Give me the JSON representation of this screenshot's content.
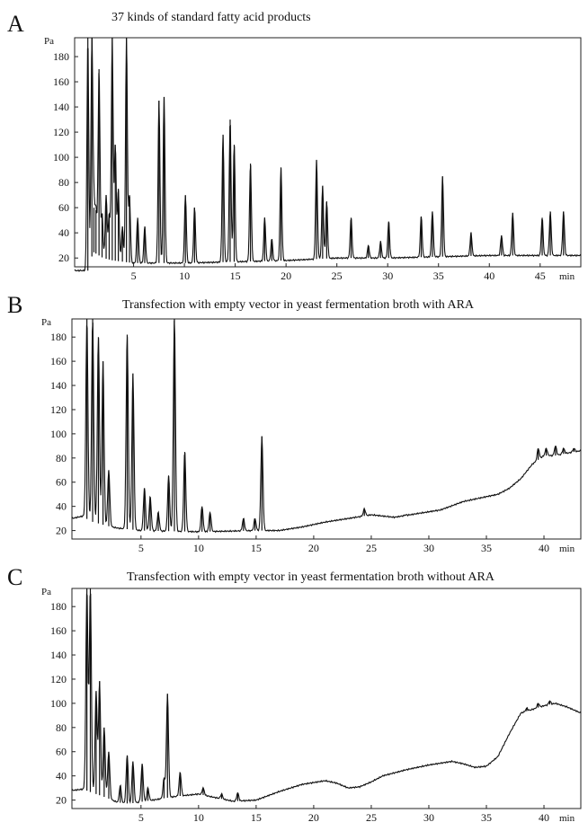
{
  "panels": [
    {
      "letter": "A",
      "title": "37 kinds of standard fatty acid products"
    },
    {
      "letter": "B",
      "title": "Transfection with empty vector in yeast fermentation broth with ARA"
    },
    {
      "letter": "C",
      "title": "Transfection with empty vector in yeast fermentation broth without ARA"
    }
  ],
  "chart_data": [
    {
      "type": "line",
      "title": "37 kinds of standard fatty acid products",
      "ylabel": "Pa",
      "xlabel": "min",
      "xlim": [
        -0.8,
        49
      ],
      "ylim": [
        13,
        195
      ],
      "x_ticks": [
        5,
        10,
        15,
        20,
        25,
        30,
        35,
        40,
        45
      ],
      "y_ticks": [
        20,
        40,
        60,
        80,
        100,
        120,
        140,
        160,
        180
      ],
      "x_tick_labels": [
        "5",
        "10",
        "15",
        "20",
        "25",
        "30",
        "35",
        "40",
        "45",
        "min"
      ],
      "y_tick_labels": [
        "180",
        "160",
        "140",
        "120",
        "100",
        "80",
        "60",
        "40",
        "20"
      ],
      "baseline": [
        [
          -0.8,
          10
        ],
        [
          0.6,
          10
        ],
        [
          1.0,
          25
        ],
        [
          2,
          20
        ],
        [
          3,
          18
        ],
        [
          5,
          16
        ],
        [
          10,
          16
        ],
        [
          15,
          17
        ],
        [
          20,
          18
        ],
        [
          25,
          20
        ],
        [
          30,
          20
        ],
        [
          35,
          21
        ],
        [
          40,
          22
        ],
        [
          45,
          22
        ],
        [
          49,
          22
        ]
      ],
      "peaks": [
        [
          0.5,
          195
        ],
        [
          0.9,
          195
        ],
        [
          1.1,
          60
        ],
        [
          1.3,
          58
        ],
        [
          1.6,
          170
        ],
        [
          1.9,
          55
        ],
        [
          2.3,
          70
        ],
        [
          2.6,
          55
        ],
        [
          2.9,
          195
        ],
        [
          3.2,
          110
        ],
        [
          3.5,
          75
        ],
        [
          3.9,
          45
        ],
        [
          4.3,
          195
        ],
        [
          4.6,
          70
        ],
        [
          5.4,
          52
        ],
        [
          6.1,
          45
        ],
        [
          7.5,
          145
        ],
        [
          8.0,
          148
        ],
        [
          10.1,
          70
        ],
        [
          11.0,
          60
        ],
        [
          13.8,
          118
        ],
        [
          14.5,
          130
        ],
        [
          14.9,
          110
        ],
        [
          16.5,
          95
        ],
        [
          17.9,
          52
        ],
        [
          18.6,
          35
        ],
        [
          19.5,
          92
        ],
        [
          23.0,
          98
        ],
        [
          23.6,
          77
        ],
        [
          24.0,
          65
        ],
        [
          26.4,
          52
        ],
        [
          28.1,
          30
        ],
        [
          29.3,
          33
        ],
        [
          30.1,
          49
        ],
        [
          33.3,
          53
        ],
        [
          34.4,
          57
        ],
        [
          35.4,
          85
        ],
        [
          38.2,
          40
        ],
        [
          41.2,
          38
        ],
        [
          42.3,
          56
        ],
        [
          45.2,
          52
        ],
        [
          46.0,
          57
        ],
        [
          47.3,
          57
        ]
      ]
    },
    {
      "type": "line",
      "title": "Transfection with empty vector in yeast fermentation broth with ARA",
      "ylabel": "Pa",
      "xlabel": "min",
      "xlim": [
        -1.0,
        43.2
      ],
      "ylim": [
        13,
        195
      ],
      "x_ticks": [
        5,
        10,
        15,
        20,
        25,
        30,
        35,
        40
      ],
      "y_ticks": [
        20,
        40,
        60,
        80,
        100,
        120,
        140,
        160,
        180
      ],
      "x_tick_labels": [
        "5",
        "10",
        "15",
        "20",
        "25",
        "30",
        "35",
        "40",
        "min"
      ],
      "y_tick_labels": [
        "180",
        "160",
        "140",
        "120",
        "100",
        "80",
        "60",
        "40",
        "20"
      ],
      "baseline": [
        [
          -1.0,
          30
        ],
        [
          0,
          32
        ],
        [
          0.5,
          28
        ],
        [
          2,
          24
        ],
        [
          3,
          22
        ],
        [
          5,
          20
        ],
        [
          10,
          19
        ],
        [
          15,
          20
        ],
        [
          17,
          20
        ],
        [
          19,
          23
        ],
        [
          21,
          27
        ],
        [
          23,
          30
        ],
        [
          25,
          33
        ],
        [
          27,
          31
        ],
        [
          29,
          34
        ],
        [
          31,
          37
        ],
        [
          33,
          44
        ],
        [
          35,
          48
        ],
        [
          36,
          50
        ],
        [
          37,
          55
        ],
        [
          38,
          63
        ],
        [
          39,
          75
        ],
        [
          40,
          82
        ],
        [
          41,
          82
        ],
        [
          42,
          84
        ],
        [
          43.2,
          86
        ]
      ],
      "peaks": [
        [
          0.3,
          195
        ],
        [
          0.8,
          195
        ],
        [
          1.3,
          180
        ],
        [
          1.7,
          160
        ],
        [
          2.2,
          70
        ],
        [
          3.8,
          182
        ],
        [
          4.3,
          150
        ],
        [
          5.3,
          55
        ],
        [
          5.8,
          48
        ],
        [
          6.5,
          35
        ],
        [
          7.4,
          65
        ],
        [
          7.9,
          195
        ],
        [
          8.8,
          85
        ],
        [
          10.3,
          40
        ],
        [
          11.0,
          35
        ],
        [
          13.9,
          30
        ],
        [
          14.9,
          30
        ],
        [
          15.5,
          98
        ],
        [
          24.4,
          38
        ],
        [
          28.0,
          33
        ],
        [
          39.5,
          88
        ],
        [
          40.2,
          88
        ],
        [
          41.0,
          90
        ],
        [
          41.7,
          88
        ],
        [
          42.6,
          88
        ]
      ]
    },
    {
      "type": "line",
      "title": "Transfection with empty vector in yeast fermentation broth without ARA",
      "ylabel": "Pa",
      "xlabel": "min",
      "xlim": [
        -1.0,
        43.2
      ],
      "ylim": [
        13,
        195
      ],
      "x_ticks": [
        5,
        10,
        15,
        20,
        25,
        30,
        35,
        40
      ],
      "y_ticks": [
        20,
        40,
        60,
        80,
        100,
        120,
        140,
        160,
        180
      ],
      "x_tick_labels": [
        "5",
        "10",
        "15",
        "20",
        "25",
        "30",
        "35",
        "40",
        "min"
      ],
      "y_tick_labels": [
        "180",
        "160",
        "140",
        "120",
        "100",
        "80",
        "60",
        "40",
        "20"
      ],
      "baseline": [
        [
          -1.0,
          28
        ],
        [
          0,
          29
        ],
        [
          0.5,
          27
        ],
        [
          2,
          22
        ],
        [
          3,
          18
        ],
        [
          4,
          17
        ],
        [
          6,
          20
        ],
        [
          8,
          23
        ],
        [
          10,
          25
        ],
        [
          12,
          21
        ],
        [
          13,
          19
        ],
        [
          15,
          20
        ],
        [
          17,
          27
        ],
        [
          19,
          33
        ],
        [
          21,
          36
        ],
        [
          22,
          34
        ],
        [
          23,
          30
        ],
        [
          24,
          31
        ],
        [
          25,
          35
        ],
        [
          26,
          40
        ],
        [
          28,
          45
        ],
        [
          30,
          49
        ],
        [
          32,
          52
        ],
        [
          33,
          50
        ],
        [
          34,
          47
        ],
        [
          35,
          48
        ],
        [
          36,
          56
        ],
        [
          37,
          75
        ],
        [
          38,
          92
        ],
        [
          39,
          95
        ],
        [
          40,
          98
        ],
        [
          41,
          100
        ],
        [
          42,
          97
        ],
        [
          43.2,
          92
        ]
      ],
      "peaks": [
        [
          0.3,
          195
        ],
        [
          0.6,
          195
        ],
        [
          1.1,
          110
        ],
        [
          1.4,
          118
        ],
        [
          1.8,
          80
        ],
        [
          2.2,
          60
        ],
        [
          3.2,
          32
        ],
        [
          3.8,
          57
        ],
        [
          4.3,
          52
        ],
        [
          5.1,
          50
        ],
        [
          5.6,
          30
        ],
        [
          7.0,
          38
        ],
        [
          7.3,
          108
        ],
        [
          8.4,
          43
        ],
        [
          10.4,
          30
        ],
        [
          12.0,
          25
        ],
        [
          13.4,
          26
        ],
        [
          38.5,
          96
        ],
        [
          39.5,
          100
        ],
        [
          40.5,
          102
        ]
      ]
    }
  ]
}
